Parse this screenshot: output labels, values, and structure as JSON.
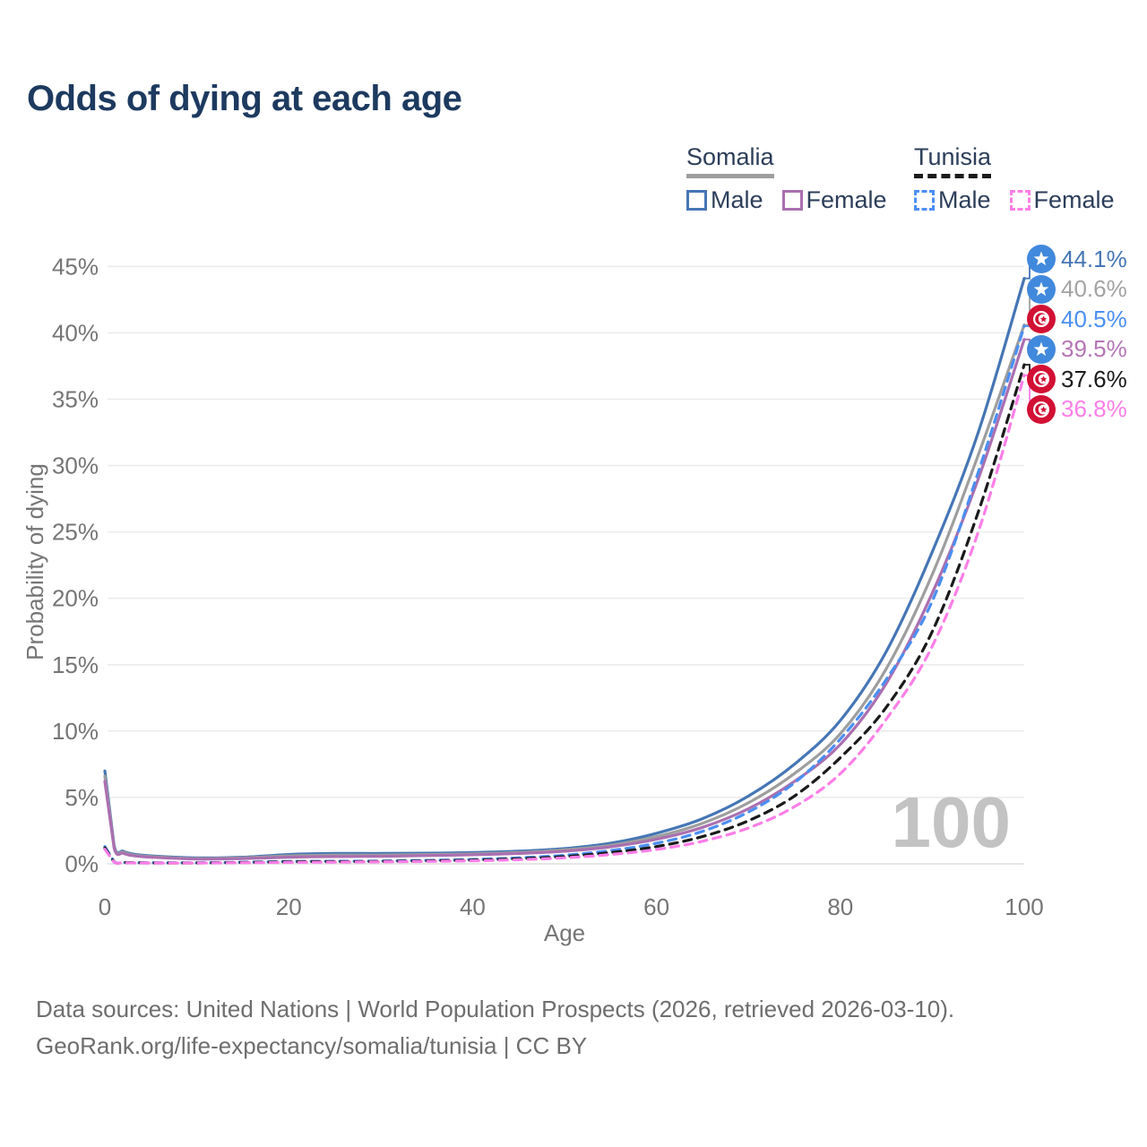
{
  "title": "Odds of dying at each age",
  "legend": {
    "groups": [
      {
        "name": "Somalia",
        "underline_style": "solid",
        "underline_color": "#9e9e9e",
        "items": [
          {
            "label": "Male",
            "color": "#4576b5",
            "dashed": false
          },
          {
            "label": "Female",
            "color": "#ab6fb0",
            "dashed": false
          }
        ]
      },
      {
        "name": "Tunisia",
        "underline_style": "dashed",
        "underline_color": "#1a1a1a",
        "items": [
          {
            "label": "Male",
            "color": "#4b8ff2",
            "dashed": true
          },
          {
            "label": "Female",
            "color": "#fc7ee7",
            "dashed": true
          }
        ]
      }
    ]
  },
  "chart_data": {
    "type": "line",
    "title": "Odds of dying at each age",
    "xlabel": "Age",
    "ylabel": "Probability of dying",
    "xlim": [
      0,
      100
    ],
    "ylim": [
      0,
      46
    ],
    "xticks": [
      0,
      20,
      40,
      60,
      80,
      100
    ],
    "ytick_values": [
      0,
      5,
      10,
      15,
      20,
      25,
      30,
      35,
      40,
      45
    ],
    "ytick_labels": [
      "0%",
      "5%",
      "10%",
      "15%",
      "20%",
      "25%",
      "30%",
      "35%",
      "40%",
      "45%"
    ],
    "grid": true,
    "legend_position": "top-right",
    "watermark": "100",
    "x": [
      0,
      1,
      2,
      3,
      5,
      10,
      15,
      20,
      25,
      30,
      35,
      40,
      45,
      50,
      55,
      60,
      65,
      70,
      75,
      80,
      85,
      90,
      95,
      100
    ],
    "series": [
      {
        "name": "Somalia Male",
        "color": "#4576b5",
        "dashed": false,
        "values": [
          7.0,
          1.4,
          0.95,
          0.75,
          0.6,
          0.45,
          0.5,
          0.7,
          0.78,
          0.78,
          0.8,
          0.85,
          0.95,
          1.15,
          1.55,
          2.3,
          3.4,
          5.1,
          7.5,
          10.8,
          16.0,
          23.5,
          32.5,
          44.1
        ],
        "end_value": "44.1%"
      },
      {
        "name": "Somalia",
        "color": "#9e9e9e",
        "dashed": false,
        "values": [
          6.6,
          1.3,
          0.88,
          0.68,
          0.55,
          0.4,
          0.45,
          0.6,
          0.66,
          0.66,
          0.7,
          0.75,
          0.85,
          1.05,
          1.4,
          2.05,
          3.05,
          4.6,
          6.8,
          9.8,
          14.7,
          21.8,
          30.8,
          40.6
        ],
        "end_value": "40.6%"
      },
      {
        "name": "Somalia Female",
        "color": "#ab6fb0",
        "dashed": false,
        "values": [
          6.2,
          1.2,
          0.8,
          0.62,
          0.5,
          0.36,
          0.4,
          0.5,
          0.55,
          0.57,
          0.62,
          0.68,
          0.78,
          0.95,
          1.28,
          1.85,
          2.75,
          4.15,
          6.2,
          9.0,
          13.6,
          20.4,
          29.0,
          39.5
        ],
        "end_value": "39.5%"
      },
      {
        "name": "Tunisia Male",
        "color": "#4b8ff2",
        "dashed": true,
        "values": [
          1.3,
          0.16,
          0.11,
          0.09,
          0.08,
          0.08,
          0.12,
          0.18,
          0.2,
          0.21,
          0.26,
          0.33,
          0.45,
          0.65,
          1.0,
          1.55,
          2.45,
          3.9,
          6.1,
          9.4,
          13.9,
          19.8,
          29.5,
          40.5
        ],
        "end_value": "40.5%"
      },
      {
        "name": "Tunisia",
        "color": "#1a1a1a",
        "dashed": true,
        "values": [
          1.2,
          0.14,
          0.1,
          0.08,
          0.07,
          0.07,
          0.1,
          0.15,
          0.16,
          0.18,
          0.22,
          0.28,
          0.38,
          0.55,
          0.85,
          1.3,
          2.05,
          3.25,
          5.1,
          8.0,
          11.8,
          17.5,
          26.5,
          37.6
        ],
        "end_value": "37.6%"
      },
      {
        "name": "Tunisia Female",
        "color": "#fc7ee7",
        "dashed": true,
        "values": [
          1.1,
          0.13,
          0.09,
          0.07,
          0.06,
          0.06,
          0.08,
          0.11,
          0.13,
          0.15,
          0.18,
          0.23,
          0.31,
          0.45,
          0.7,
          1.08,
          1.7,
          2.7,
          4.3,
          6.8,
          10.9,
          16.4,
          25.0,
          36.8
        ],
        "end_value": "36.8%"
      }
    ]
  },
  "end_labels": [
    {
      "value": "44.1%",
      "flag": "somalia",
      "text_color": "#4576b5"
    },
    {
      "value": "40.6%",
      "flag": "somalia",
      "text_color": "#a3a3a3"
    },
    {
      "value": "40.5%",
      "flag": "tunisia",
      "text_color": "#4b8ff2"
    },
    {
      "value": "39.5%",
      "flag": "somalia",
      "text_color": "#b575b5"
    },
    {
      "value": "37.6%",
      "flag": "tunisia",
      "text_color": "#1a1a1a"
    },
    {
      "value": "36.8%",
      "flag": "tunisia",
      "text_color": "#fc7ee7"
    }
  ],
  "flag_colors": {
    "somalia_blue": "#4189dd",
    "tunisia_red": "#d21034"
  },
  "footer": {
    "line1": "Data sources: United Nations | World Population Prospects (2026, retrieved 2026-03-10).",
    "line2": "GeoRank.org/life-expectancy/somalia/tunisia | CC BY"
  }
}
